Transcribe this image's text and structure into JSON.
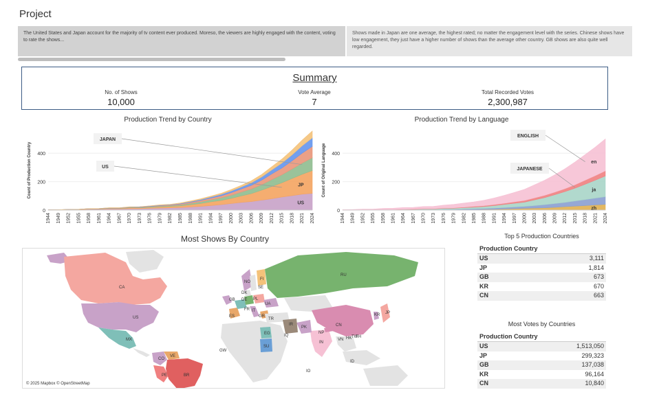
{
  "page": {
    "title": "Project"
  },
  "story": {
    "points": [
      {
        "text": "The United States and Japan account for the majority of tv content ever produced. Moreso, the viewers are highly engaged with the content, voting to rate the shows..."
      },
      {
        "text": "Shows made in Japan are one average, the highest rated; no matter the engagement level with the series. Chinese shows have low engagement, they just have a higher number of shows than the average other country. GB shows are also quite well regarded."
      }
    ]
  },
  "summary": {
    "title": "Summary",
    "kpis": [
      {
        "label": "No. of Shows",
        "value": "10,000"
      },
      {
        "label": "Vote Average",
        "value": "7"
      },
      {
        "label": "Total Recorded Votes",
        "value": "2,300,987"
      }
    ]
  },
  "chart_data": [
    {
      "type": "area",
      "title": "Production Trend by Country",
      "ylabel": "Count of Production Country",
      "xlabel": "",
      "ylim": [
        0,
        560
      ],
      "yticks": [
        "0",
        "200",
        "400"
      ],
      "x": [
        "1944",
        "1949",
        "1952",
        "1955",
        "1958",
        "1961",
        "1964",
        "1967",
        "1970",
        "1973",
        "1976",
        "1979",
        "1982",
        "1985",
        "1988",
        "1991",
        "1994",
        "1997",
        "2000",
        "2003",
        "2006",
        "2009",
        "2012",
        "2015",
        "2018",
        "2021",
        "2024"
      ],
      "series": [
        {
          "name": "US",
          "color": "#c8a2c8",
          "values": [
            2,
            3,
            4,
            4,
            6,
            6,
            8,
            8,
            10,
            10,
            12,
            14,
            16,
            18,
            22,
            26,
            32,
            38,
            46,
            54,
            60,
            70,
            80,
            92,
            102,
            112,
            118
          ]
        },
        {
          "name": "JP",
          "color": "#f4a460",
          "values": [
            0,
            0,
            1,
            1,
            2,
            2,
            4,
            4,
            6,
            6,
            8,
            9,
            10,
            12,
            16,
            20,
            26,
            30,
            36,
            46,
            56,
            70,
            86,
            100,
            120,
            140,
            160
          ]
        },
        {
          "name": "",
          "color": "#8fbc8f",
          "values": [
            0,
            0,
            0,
            1,
            1,
            1,
            2,
            2,
            3,
            3,
            4,
            5,
            6,
            7,
            9,
            12,
            14,
            18,
            22,
            26,
            32,
            38,
            48,
            56,
            66,
            78,
            90
          ]
        },
        {
          "name": "",
          "color": "#e9967a",
          "values": [
            0,
            0,
            0,
            0,
            1,
            1,
            1,
            1,
            2,
            2,
            3,
            4,
            4,
            6,
            8,
            10,
            12,
            14,
            18,
            22,
            26,
            32,
            40,
            48,
            58,
            70,
            80
          ]
        },
        {
          "name": "",
          "color": "#6495ed",
          "values": [
            0,
            0,
            0,
            0,
            0,
            1,
            1,
            1,
            1,
            2,
            2,
            3,
            3,
            4,
            5,
            6,
            8,
            10,
            12,
            14,
            18,
            22,
            28,
            34,
            42,
            52,
            60
          ]
        },
        {
          "name": "",
          "color": "#f4c27a",
          "values": [
            0,
            0,
            0,
            0,
            0,
            0,
            1,
            1,
            1,
            1,
            1,
            2,
            2,
            3,
            4,
            5,
            6,
            8,
            10,
            12,
            14,
            18,
            22,
            28,
            34,
            40,
            48
          ]
        }
      ],
      "annotations": [
        "JAPAN",
        "US"
      ]
    },
    {
      "type": "area",
      "title": "Production Trend by Language",
      "ylabel": "Count of Original Language",
      "xlabel": "",
      "ylim": [
        0,
        560
      ],
      "yticks": [
        "0",
        "200",
        "400"
      ],
      "x": [
        "1944",
        "1949",
        "1952",
        "1955",
        "1958",
        "1961",
        "1964",
        "1967",
        "1970",
        "1973",
        "1976",
        "1979",
        "1982",
        "1985",
        "1988",
        "1991",
        "1994",
        "1997",
        "2000",
        "2003",
        "2006",
        "2009",
        "2012",
        "2015",
        "2018",
        "2021",
        "2024"
      ],
      "series": [
        {
          "name": "zh",
          "color": "#e0b050",
          "values": [
            0,
            0,
            0,
            0,
            0,
            0,
            1,
            1,
            1,
            1,
            2,
            2,
            3,
            4,
            5,
            6,
            8,
            10,
            12,
            14,
            16,
            20,
            24,
            28,
            32,
            36,
            40
          ]
        },
        {
          "name": "",
          "color": "#8a9fd0",
          "values": [
            0,
            0,
            0,
            0,
            1,
            1,
            1,
            1,
            2,
            2,
            3,
            3,
            4,
            5,
            6,
            8,
            10,
            12,
            14,
            18,
            22,
            26,
            30,
            36,
            42,
            48,
            54
          ]
        },
        {
          "name": "ja",
          "color": "#a8d5c8",
          "values": [
            0,
            0,
            1,
            1,
            2,
            2,
            3,
            3,
            5,
            5,
            7,
            8,
            10,
            12,
            14,
            18,
            22,
            26,
            30,
            40,
            50,
            62,
            76,
            90,
            108,
            126,
            146
          ]
        },
        {
          "name": "",
          "color": "#f08080",
          "values": [
            0,
            0,
            0,
            0,
            1,
            1,
            1,
            2,
            2,
            2,
            3,
            3,
            4,
            5,
            6,
            7,
            8,
            10,
            12,
            14,
            16,
            18,
            20,
            24,
            28,
            32,
            36
          ]
        },
        {
          "name": "en",
          "color": "#f6c1d4",
          "values": [
            3,
            4,
            6,
            6,
            8,
            9,
            12,
            12,
            15,
            16,
            20,
            24,
            28,
            32,
            38,
            46,
            56,
            66,
            78,
            92,
            106,
            122,
            140,
            160,
            180,
            200,
            224
          ]
        }
      ],
      "annotations": [
        "ENGLISH",
        "JAPANESE"
      ]
    },
    {
      "type": "table",
      "title": "Top 5 Production Countries",
      "header": "Production Country",
      "rows": [
        {
          "country": "US",
          "value": "3,111"
        },
        {
          "country": "JP",
          "value": "1,814"
        },
        {
          "country": "GB",
          "value": "673"
        },
        {
          "country": "KR",
          "value": "670"
        },
        {
          "country": "CN",
          "value": "663"
        }
      ]
    },
    {
      "type": "table",
      "title": "Most Votes by Countries",
      "header": "Production Country",
      "rows": [
        {
          "country": "US",
          "value": "1,513,050"
        },
        {
          "country": "JP",
          "value": "299,323"
        },
        {
          "country": "GB",
          "value": "137,038"
        },
        {
          "country": "KR",
          "value": "96,164"
        },
        {
          "country": "CN",
          "value": "10,840"
        }
      ]
    }
  ],
  "map": {
    "title": "Most Shows By Country",
    "attribution": "© 2025 Mapbox © OpenStreetMap",
    "labels": [
      "CA",
      "US",
      "MX",
      "CO",
      "VE",
      "PE",
      "BR",
      "RU",
      "CN",
      "IN",
      "JP",
      "KR",
      "IR",
      "PK",
      "NP",
      "EG",
      "SU",
      "TR",
      "UA",
      "PL",
      "FI",
      "SE",
      "NO",
      "DK",
      "GB",
      "DE",
      "FR",
      "ES",
      "IT",
      "GR",
      "VN",
      "HK",
      "TW",
      "TH",
      "ID",
      "IQ",
      "GW",
      "IO"
    ],
    "colors": {
      "blue_fill": "#c8a2c8",
      "green_fill": "#77b36e",
      "salmon": "#f4a7a0",
      "teal": "#7fbfb8",
      "gray": "#e3e3e3"
    }
  }
}
